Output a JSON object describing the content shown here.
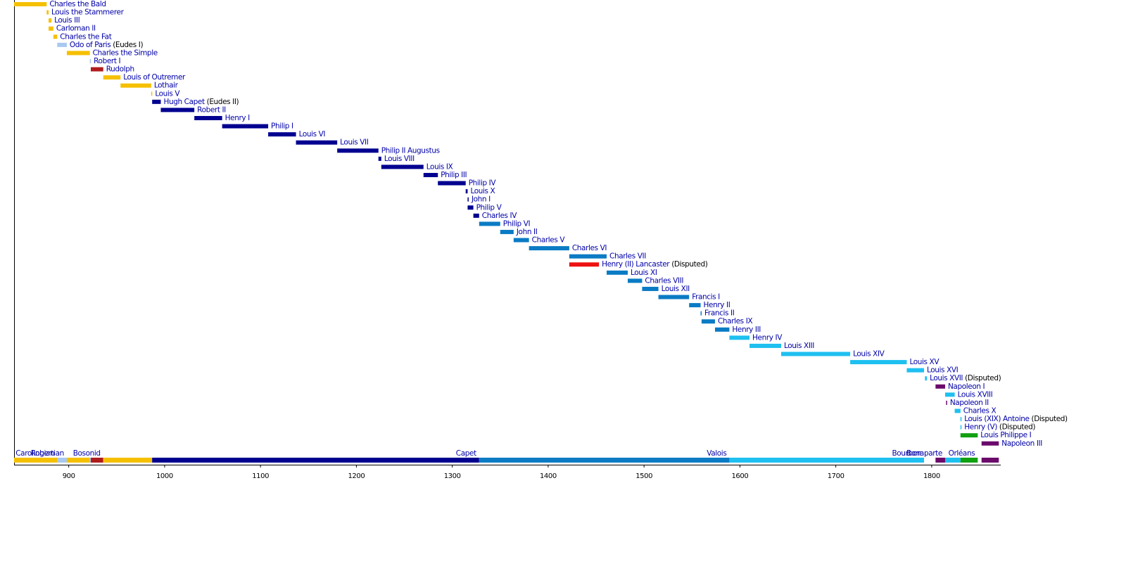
{
  "chart_data": {
    "type": "timeline",
    "xlim": [
      843,
      1872
    ],
    "xticks": [
      900,
      1000,
      1100,
      1200,
      1300,
      1400,
      1500,
      1600,
      1700,
      1800
    ],
    "items": [
      {
        "name": "Charles the Bald",
        "start": 843,
        "end": 877,
        "color": "#f5c000"
      },
      {
        "name": "Louis the Stammerer",
        "start": 877,
        "end": 879,
        "color": "#f5c000"
      },
      {
        "name": "Louis III",
        "start": 879,
        "end": 882,
        "color": "#f5c000"
      },
      {
        "name": "Carloman II",
        "start": 879,
        "end": 884,
        "color": "#f5c000"
      },
      {
        "name": "Charles the Fat",
        "start": 884,
        "end": 888,
        "color": "#f5c000"
      },
      {
        "name": "Odo of Paris",
        "note": "(Eudes I)",
        "start": 888,
        "end": 898,
        "color": "#a8c8f0"
      },
      {
        "name": "Charles the Simple",
        "start": 898,
        "end": 922,
        "color": "#f5c000"
      },
      {
        "name": "Robert I",
        "start": 922,
        "end": 923,
        "color": "#a8c8f0"
      },
      {
        "name": "Rudolph",
        "start": 923,
        "end": 936,
        "color": "#b01c1c"
      },
      {
        "name": "Louis of Outremer",
        "start": 936,
        "end": 954,
        "color": "#f5c000"
      },
      {
        "name": "Lothair",
        "start": 954,
        "end": 986,
        "color": "#f5c000"
      },
      {
        "name": "Louis V",
        "start": 986,
        "end": 987,
        "color": "#f5c000"
      },
      {
        "name": "Hugh Capet",
        "note": "(Eudes II)",
        "start": 987,
        "end": 996,
        "color": "#000090"
      },
      {
        "name": "Robert II",
        "start": 996,
        "end": 1031,
        "color": "#000090"
      },
      {
        "name": "Henry I",
        "start": 1031,
        "end": 1060,
        "color": "#000090"
      },
      {
        "name": "Philip I",
        "start": 1060,
        "end": 1108,
        "color": "#000090"
      },
      {
        "name": "Louis VI",
        "start": 1108,
        "end": 1137,
        "color": "#000090"
      },
      {
        "name": "Louis VII",
        "start": 1137,
        "end": 1180,
        "color": "#000090"
      },
      {
        "name": "Philip II Augustus",
        "start": 1180,
        "end": 1223,
        "color": "#000090"
      },
      {
        "name": "Louis VIII",
        "start": 1223,
        "end": 1226,
        "color": "#000090"
      },
      {
        "name": "Louis IX",
        "start": 1226,
        "end": 1270,
        "color": "#000090"
      },
      {
        "name": "Philip III",
        "start": 1270,
        "end": 1285,
        "color": "#000090"
      },
      {
        "name": "Philip IV",
        "start": 1285,
        "end": 1314,
        "color": "#000090"
      },
      {
        "name": "Louis X",
        "start": 1314,
        "end": 1316,
        "color": "#000090"
      },
      {
        "name": "John I",
        "start": 1316,
        "end": 1316,
        "color": "#000090"
      },
      {
        "name": "Philip V",
        "start": 1316,
        "end": 1322,
        "color": "#000090"
      },
      {
        "name": "Charles IV",
        "start": 1322,
        "end": 1328,
        "color": "#000090"
      },
      {
        "name": "Philip VI",
        "start": 1328,
        "end": 1350,
        "color": "#0a7bc4"
      },
      {
        "name": "John II",
        "start": 1350,
        "end": 1364,
        "color": "#0a7bc4"
      },
      {
        "name": "Charles V",
        "start": 1364,
        "end": 1380,
        "color": "#0a7bc4"
      },
      {
        "name": "Charles VI",
        "start": 1380,
        "end": 1422,
        "color": "#0a7bc4"
      },
      {
        "name": "Charles VII",
        "start": 1422,
        "end": 1461,
        "color": "#0a7bc4"
      },
      {
        "name": "Henry (II) Lancaster",
        "note": "(Disputed)",
        "start": 1422,
        "end": 1453,
        "color": "#ee1111"
      },
      {
        "name": "Louis XI",
        "start": 1461,
        "end": 1483,
        "color": "#0a7bc4"
      },
      {
        "name": "Charles VIII",
        "start": 1483,
        "end": 1498,
        "color": "#0a7bc4"
      },
      {
        "name": "Louis XII",
        "start": 1498,
        "end": 1515,
        "color": "#0a7bc4"
      },
      {
        "name": "Francis I",
        "start": 1515,
        "end": 1547,
        "color": "#0a7bc4"
      },
      {
        "name": "Henry II",
        "start": 1547,
        "end": 1559,
        "color": "#0a7bc4"
      },
      {
        "name": "Francis II",
        "start": 1559,
        "end": 1560,
        "color": "#0a7bc4"
      },
      {
        "name": "Charles IX",
        "start": 1560,
        "end": 1574,
        "color": "#0a7bc4"
      },
      {
        "name": "Henry III",
        "start": 1574,
        "end": 1589,
        "color": "#0a7bc4"
      },
      {
        "name": "Henry IV",
        "start": 1589,
        "end": 1610,
        "color": "#1ec0f0"
      },
      {
        "name": "Louis XIII",
        "start": 1610,
        "end": 1643,
        "color": "#1ec0f0"
      },
      {
        "name": "Louis XIV",
        "start": 1643,
        "end": 1715,
        "color": "#1ec0f0"
      },
      {
        "name": "Louis XV",
        "start": 1715,
        "end": 1774,
        "color": "#1ec0f0"
      },
      {
        "name": "Louis XVI",
        "start": 1774,
        "end": 1792,
        "color": "#1ec0f0"
      },
      {
        "name": "Louis XVII",
        "note": "(Disputed)",
        "start": 1793,
        "end": 1795,
        "color": "#1ec0f0"
      },
      {
        "name": "Napoleon I",
        "start": 1804,
        "end": 1814,
        "color": "#6b0a6b"
      },
      {
        "name": "Louis XVIII",
        "start": 1814,
        "end": 1824,
        "color": "#1ec0f0"
      },
      {
        "name": "Napoleon II",
        "start": 1815,
        "end": 1815,
        "color": "#6b0a6b"
      },
      {
        "name": "Charles X",
        "start": 1824,
        "end": 1830,
        "color": "#1ec0f0"
      },
      {
        "name": "Louis (XIX) Antoine",
        "note": "(Disputed)",
        "start": 1830,
        "end": 1830,
        "color": "#1ec0f0"
      },
      {
        "name": "Henry (V)",
        "note": "(Disputed)",
        "start": 1830,
        "end": 1830,
        "color": "#1ec0f0"
      },
      {
        "name": "Louis Philippe I",
        "start": 1830,
        "end": 1848,
        "color": "#10a010"
      },
      {
        "name": "Napoleon III",
        "start": 1852,
        "end": 1870,
        "color": "#6b0a6b"
      }
    ],
    "dynasties": [
      {
        "name": "Carolingian",
        "color": "#f5c000"
      },
      {
        "name": "Robertian",
        "color": "#a8c8f0"
      },
      {
        "name": "Bosonid",
        "color": "#b01c1c"
      },
      {
        "name": "Capet",
        "color": "#000090"
      },
      {
        "name": "Valois",
        "color": "#0a7bc4"
      },
      {
        "name": "Bourbon",
        "color": "#1ec0f0"
      },
      {
        "name": "Bonaparte",
        "color": "#6b0a6b"
      },
      {
        "name": "Orléans",
        "color": "#10a010"
      }
    ],
    "periods": [
      {
        "dynasty": 0,
        "start": 843,
        "end": 888
      },
      {
        "dynasty": 1,
        "start": 888,
        "end": 898
      },
      {
        "dynasty": 0,
        "start": 898,
        "end": 922
      },
      {
        "dynasty": 1,
        "start": 922,
        "end": 923
      },
      {
        "dynasty": 2,
        "start": 923,
        "end": 936
      },
      {
        "dynasty": 0,
        "start": 936,
        "end": 987
      },
      {
        "dynasty": 3,
        "start": 987,
        "end": 1328
      },
      {
        "dynasty": 4,
        "start": 1328,
        "end": 1589
      },
      {
        "dynasty": 5,
        "start": 1589,
        "end": 1792
      },
      {
        "dynasty": 6,
        "start": 1804,
        "end": 1814
      },
      {
        "dynasty": 5,
        "start": 1814,
        "end": 1830
      },
      {
        "dynasty": 7,
        "start": 1830,
        "end": 1848
      },
      {
        "dynasty": 6,
        "start": 1852,
        "end": 1870
      }
    ]
  }
}
